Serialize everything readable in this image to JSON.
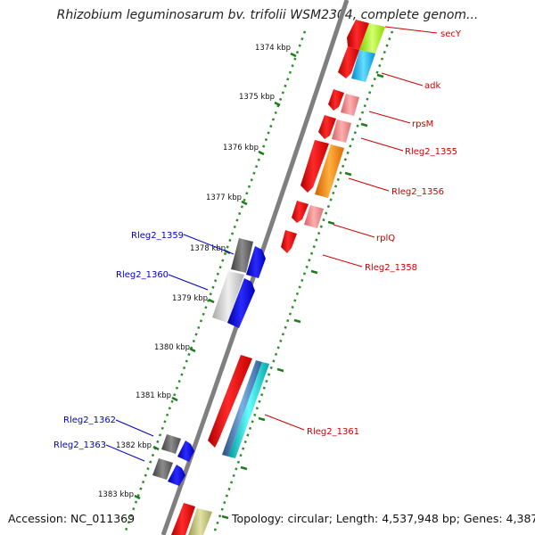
{
  "title": "Rhizobium leguminosarum bv. trifolii WSM2304, complete genom...",
  "footer": {
    "accession": "Accession: NC_011369",
    "topology": "Topology: circular; Length: 4,537,948 bp; Genes: 4,387"
  },
  "colors": {
    "backbone": "#7f7f7f",
    "tick": "#2e8b2e",
    "forward_label": "#cc0000",
    "reverse_label": "#0000cc"
  },
  "ticks": [
    "1374 kbp",
    "1375 kbp",
    "1376 kbp",
    "1377 kbp",
    "1378 kbp",
    "1379 kbp",
    "1380 kbp",
    "1381 kbp",
    "1382 kbp",
    "1383 kbp"
  ],
  "labels_forward": [
    "secY",
    "adk",
    "rpsM",
    "Rleg2_1355",
    "Rleg2_1356",
    "rplQ",
    "Rleg2_1358",
    "Rleg2_1361"
  ],
  "labels_reverse": [
    "Rleg2_1359",
    "Rleg2_1360",
    "Rleg2_1362",
    "Rleg2_1363"
  ]
}
